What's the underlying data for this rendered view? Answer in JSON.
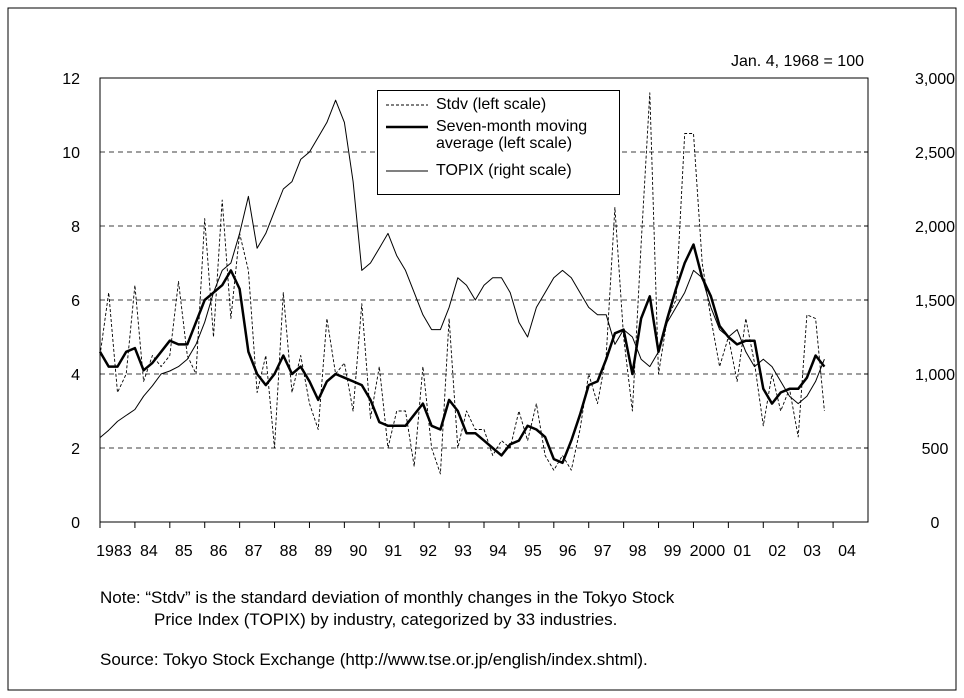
{
  "chart_data": {
    "type": "line",
    "annotation": "Jan. 4, 1968 = 100",
    "note": [
      "Note: “Stdv” is the standard deviation of monthly changes in the Tokyo Stock",
      "Price Index (TOPIX) by industry, categorized by 33 industries."
    ],
    "source": "Source: Tokyo Stock Exchange (http://www.tse.or.jp/english/index.shtml).",
    "xlim": [
      1983,
      2005
    ],
    "xticks": [
      {
        "value": 1983,
        "label": "1983"
      },
      {
        "value": 1984,
        "label": "84"
      },
      {
        "value": 1985,
        "label": "85"
      },
      {
        "value": 1986,
        "label": "86"
      },
      {
        "value": 1987,
        "label": "87"
      },
      {
        "value": 1988,
        "label": "88"
      },
      {
        "value": 1989,
        "label": "89"
      },
      {
        "value": 1990,
        "label": "90"
      },
      {
        "value": 1991,
        "label": "91"
      },
      {
        "value": 1992,
        "label": "92"
      },
      {
        "value": 1993,
        "label": "93"
      },
      {
        "value": 1994,
        "label": "94"
      },
      {
        "value": 1995,
        "label": "95"
      },
      {
        "value": 1996,
        "label": "96"
      },
      {
        "value": 1997,
        "label": "97"
      },
      {
        "value": 1998,
        "label": "98"
      },
      {
        "value": 1999,
        "label": "99"
      },
      {
        "value": 2000,
        "label": "2000"
      },
      {
        "value": 2001,
        "label": "01"
      },
      {
        "value": 2002,
        "label": "02"
      },
      {
        "value": 2003,
        "label": "03"
      },
      {
        "value": 2004,
        "label": "04"
      }
    ],
    "ylim": [
      0,
      12
    ],
    "yticks": [
      0,
      2,
      4,
      6,
      8,
      10,
      12
    ],
    "y2lim": [
      0,
      3000
    ],
    "y2ticks": [
      0,
      500,
      {
        "value": 1000,
        "label": "1,000"
      },
      {
        "value": 1500,
        "label": "1,500"
      },
      {
        "value": 2000,
        "label": "2,000"
      },
      {
        "value": 2500,
        "label": "2,500"
      },
      {
        "value": 3000,
        "label": "3,000"
      }
    ],
    "grid": true,
    "x": [
      1983,
      1983.25,
      1983.5,
      1983.75,
      1984,
      1984.25,
      1984.5,
      1984.75,
      1985,
      1985.25,
      1985.5,
      1985.75,
      1986,
      1986.25,
      1986.5,
      1986.75,
      1987,
      1987.25,
      1987.5,
      1987.75,
      1988,
      1988.25,
      1988.5,
      1988.75,
      1989,
      1989.25,
      1989.5,
      1989.75,
      1990,
      1990.25,
      1990.5,
      1990.75,
      1991,
      1991.25,
      1991.5,
      1991.75,
      1992,
      1992.25,
      1992.5,
      1992.75,
      1993,
      1993.25,
      1993.5,
      1993.75,
      1994,
      1994.25,
      1994.5,
      1994.75,
      1995,
      1995.25,
      1995.5,
      1995.75,
      1996,
      1996.25,
      1996.5,
      1996.75,
      1997,
      1997.25,
      1997.5,
      1997.75,
      1998,
      1998.25,
      1998.5,
      1998.75,
      1999,
      1999.25,
      1999.5,
      1999.75,
      2000,
      2000.25,
      2000.5,
      2000.75,
      2001,
      2001.25,
      2001.5,
      2001.75,
      2002,
      2002.25,
      2002.5,
      2002.75,
      2003,
      2003.25,
      2003.5,
      2003.75
    ],
    "series": [
      {
        "name": "Stdv (left scale)",
        "color": "#000000",
        "values": [
          4.5,
          6.2,
          3.5,
          4.0,
          6.4,
          3.8,
          4.5,
          4.2,
          4.5,
          6.5,
          4.5,
          4.0,
          8.2,
          5.0,
          8.7,
          5.5,
          7.8,
          6.8,
          3.5,
          4.5,
          2.0,
          6.2,
          3.5,
          4.5,
          3.2,
          2.5,
          5.5,
          4.0,
          4.3,
          3.0,
          5.9,
          2.8,
          4.2,
          2.0,
          3.0,
          3.0,
          1.5,
          4.2,
          2.0,
          1.3,
          5.5,
          2.0,
          3.0,
          2.5,
          2.5,
          1.8,
          2.2,
          2.0,
          3.0,
          2.2,
          3.2,
          1.8,
          1.4,
          1.8,
          1.4,
          2.5,
          4.0,
          3.2,
          4.5,
          8.5,
          5.0,
          3.0,
          7.5,
          11.6,
          4.0,
          5.5,
          6.0,
          10.5,
          10.5,
          7.0,
          5.5,
          4.2,
          5.0,
          3.8,
          5.5,
          4.3,
          2.6,
          4.0,
          3.0,
          3.6,
          2.3,
          5.6,
          5.5,
          3.0
        ]
      },
      {
        "name": "Seven-month moving average (left scale)",
        "color": "#000000",
        "values": [
          4.6,
          4.2,
          4.2,
          4.6,
          4.7,
          4.1,
          4.3,
          4.6,
          4.9,
          4.8,
          4.8,
          5.4,
          6.0,
          6.2,
          6.4,
          6.8,
          6.3,
          4.6,
          4.0,
          3.7,
          4.0,
          4.5,
          4.0,
          4.2,
          3.8,
          3.3,
          3.8,
          4.0,
          3.9,
          3.8,
          3.7,
          3.3,
          2.7,
          2.6,
          2.6,
          2.6,
          2.9,
          3.2,
          2.6,
          2.5,
          3.3,
          3.0,
          2.4,
          2.4,
          2.2,
          2.0,
          1.8,
          2.1,
          2.2,
          2.6,
          2.5,
          2.3,
          1.7,
          1.6,
          2.2,
          2.9,
          3.7,
          3.8,
          4.4,
          5.1,
          5.2,
          4.0,
          5.5,
          6.1,
          4.6,
          5.5,
          6.3,
          7.0,
          7.5,
          6.6,
          6.1,
          5.3,
          5.0,
          4.8,
          4.9,
          4.9,
          3.6,
          3.2,
          3.5,
          3.6,
          3.6,
          3.9,
          4.5,
          4.2
        ]
      },
      {
        "name": "TOPIX (right scale)",
        "color": "#000000",
        "axis": "y2",
        "values": [
          570,
          620,
          680,
          720,
          760,
          850,
          920,
          1000,
          1020,
          1050,
          1100,
          1200,
          1350,
          1550,
          1700,
          1750,
          1950,
          2200,
          1850,
          1950,
          2100,
          2250,
          2300,
          2450,
          2500,
          2600,
          2700,
          2850,
          2700,
          2300,
          1700,
          1750,
          1850,
          1950,
          1800,
          1700,
          1550,
          1400,
          1300,
          1300,
          1450,
          1650,
          1600,
          1500,
          1600,
          1650,
          1650,
          1550,
          1350,
          1250,
          1450,
          1550,
          1650,
          1700,
          1650,
          1550,
          1450,
          1400,
          1400,
          1200,
          1300,
          1250,
          1100,
          1050,
          1150,
          1350,
          1450,
          1550,
          1700,
          1650,
          1450,
          1300,
          1250,
          1300,
          1150,
          1050,
          1100,
          1050,
          950,
          850,
          800,
          850,
          950,
          1100
        ]
      }
    ]
  }
}
